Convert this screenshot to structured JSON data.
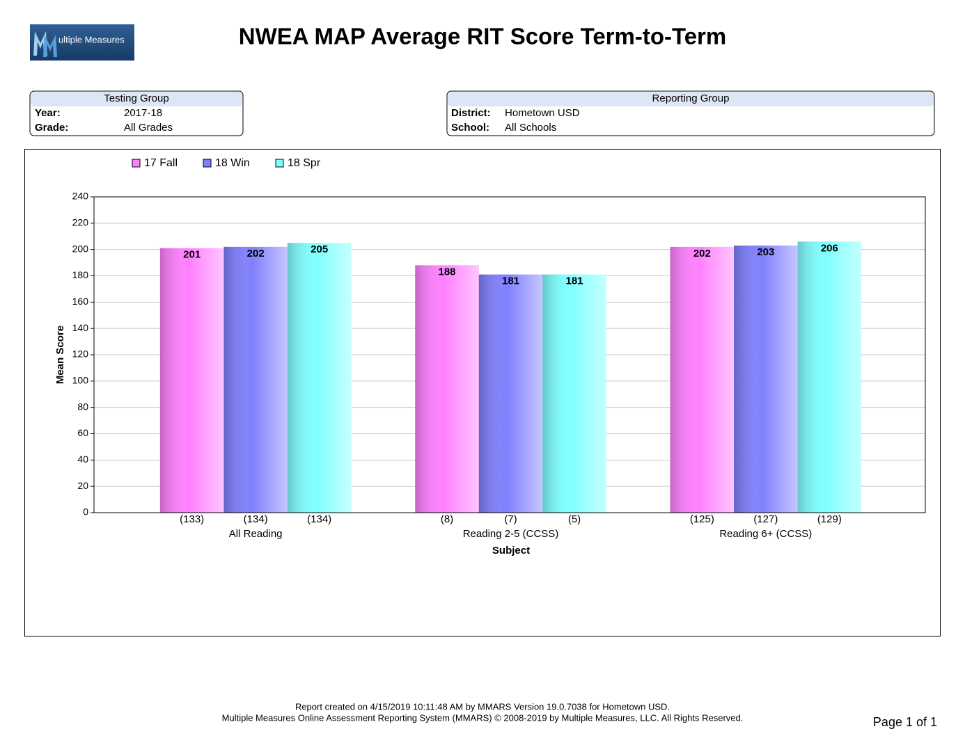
{
  "header": {
    "logo_text": "ultiple Measures",
    "title": "NWEA MAP Average RIT Score Term-to-Term"
  },
  "testing_group": {
    "title": "Testing Group",
    "rows": [
      [
        "Year:",
        "2017-18"
      ],
      [
        "Grade:",
        "All Grades"
      ]
    ]
  },
  "reporting_group": {
    "title": "Reporting Group",
    "rows": [
      [
        "District:",
        "Hometown USD"
      ],
      [
        "School:",
        "All Schools"
      ]
    ]
  },
  "chart_data": {
    "type": "bar",
    "x_label": "Subject",
    "y_label": "Mean Score",
    "categories": [
      "All Reading",
      "Reading 2-5 (CCSS)",
      "Reading 6+ (CCSS)"
    ],
    "series": [
      {
        "name": "17 Fall",
        "color": "#ff80ff",
        "values": [
          201,
          188,
          202
        ],
        "counts": [
          "(133)",
          "(8)",
          "(125)"
        ]
      },
      {
        "name": "18 Win",
        "color": "#8080ff",
        "values": [
          202,
          181,
          203
        ],
        "counts": [
          "(134)",
          "(7)",
          "(127)"
        ]
      },
      {
        "name": "18 Spr",
        "color": "#80ffff",
        "values": [
          205,
          181,
          206
        ],
        "counts": [
          "(134)",
          "(5)",
          "(129)"
        ]
      }
    ],
    "ylim": [
      0,
      240
    ],
    "yticks": [
      0,
      20,
      40,
      60,
      80,
      100,
      120,
      140,
      160,
      180,
      200,
      220,
      240
    ],
    "grid": true,
    "legend": "top-left"
  },
  "footer": {
    "lines": [
      "Report created on 4/15/2019 10:11:48 AM by MMARS Version 19.0.7038 for Hometown USD.",
      "Multiple Measures Online Assessment Reporting System (MMARS) © 2008-2019 by Multiple Measures, LLC. All Rights Reserved."
    ],
    "page": "Page 1 of 1"
  }
}
